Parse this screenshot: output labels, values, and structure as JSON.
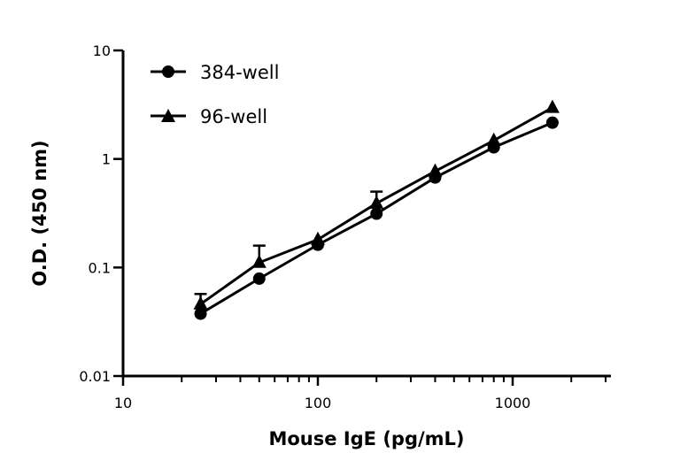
{
  "chart_data": {
    "type": "line",
    "xlabel": "Mouse IgE (pg/mL)",
    "ylabel": "O.D. (450 nm)",
    "xscale": "log",
    "yscale": "log",
    "xlim": [
      10,
      3200
    ],
    "ylim": [
      0.01,
      10
    ],
    "x_ticks": [
      "10",
      "100",
      "1000"
    ],
    "y_ticks": [
      "0.01",
      "0.1",
      "1",
      "10"
    ],
    "grid": false,
    "legend_position": "top-left",
    "x": [
      25,
      50,
      100,
      200,
      400,
      800,
      1600
    ],
    "series": [
      {
        "name": "384-well",
        "marker": "circle",
        "values": [
          0.0375,
          0.079,
          0.162,
          0.313,
          0.674,
          1.28,
          2.16
        ],
        "error_upper": [
          null,
          null,
          null,
          null,
          null,
          null,
          null
        ]
      },
      {
        "name": "96-well",
        "marker": "triangle",
        "values": [
          0.046,
          0.111,
          0.181,
          0.39,
          0.77,
          1.48,
          2.97
        ],
        "error_upper": [
          0.057,
          0.159,
          null,
          0.5,
          null,
          null,
          null
        ]
      }
    ],
    "color": "#000000"
  }
}
